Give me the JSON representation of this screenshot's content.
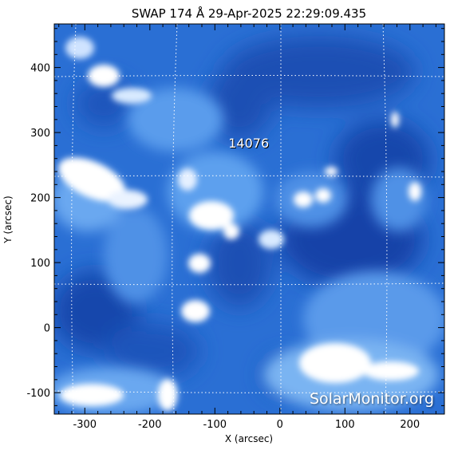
{
  "title": "SWAP 174 Å 29-Apr-2025 22:29:09.435",
  "watermark": "SolarMonitor.org",
  "chart_data": {
    "type": "heatmap",
    "title": "SWAP 174 Å 29-Apr-2025 22:29:09.435",
    "xlabel": "X (arcsec)",
    "ylabel": "Y (arcsec)",
    "xlim": [
      -347,
      253
    ],
    "ylim": [
      -133,
      467
    ],
    "x_ticks": [
      -300,
      -200,
      -100,
      0,
      100,
      200
    ],
    "y_ticks": [
      -100,
      0,
      100,
      200,
      300,
      400
    ],
    "colormap": [
      "#0a2a8a",
      "#1f66d6",
      "#5aa0ef",
      "#ffffff"
    ],
    "annotations": [
      {
        "text": "14076",
        "x": -48,
        "y": 277
      }
    ],
    "grid": "dotted white heliographic lines"
  }
}
